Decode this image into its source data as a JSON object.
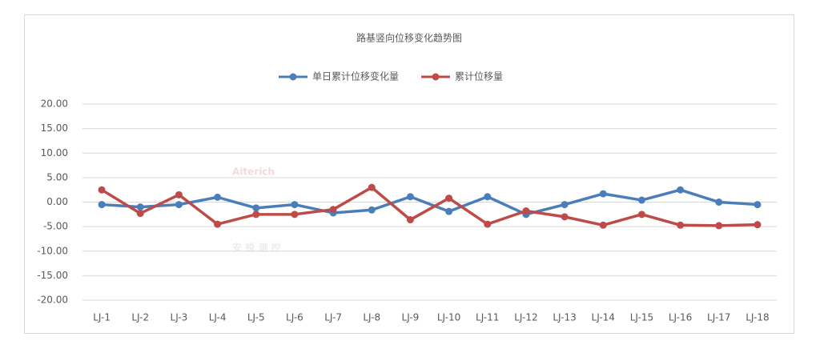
{
  "chart_data": {
    "type": "line",
    "title": "路基竖向位移变化趋势图",
    "watermark": {
      "brand": "Aiterich",
      "name": "安 锐 测 控"
    },
    "categories": [
      "LJ-1",
      "LJ-2",
      "LJ-3",
      "LJ-4",
      "LJ-5",
      "LJ-6",
      "LJ-7",
      "LJ-8",
      "LJ-9",
      "LJ-10",
      "LJ-11",
      "LJ-12",
      "LJ-13",
      "LJ-14",
      "LJ-15",
      "LJ-16",
      "LJ-17",
      "LJ-18"
    ],
    "series": [
      {
        "name": "单日累计位移变化量",
        "color": "#4a7ebb",
        "values": [
          -0.5,
          -1.0,
          -0.5,
          1.0,
          -1.2,
          -0.5,
          -2.2,
          -1.6,
          1.1,
          -1.9,
          1.1,
          -2.5,
          -0.5,
          1.7,
          0.4,
          2.5,
          0.0,
          -0.5
        ]
      },
      {
        "name": "累计位移量",
        "color": "#be4b48",
        "values": [
          2.5,
          -2.3,
          1.5,
          -4.5,
          -2.5,
          -2.5,
          -1.5,
          3.0,
          -3.6,
          0.8,
          -4.5,
          -1.8,
          -3.0,
          -4.7,
          -2.5,
          -4.7,
          -4.8,
          -4.6
        ]
      }
    ],
    "ylim": [
      -20,
      20
    ],
    "yticks": [
      {
        "value": -20,
        "label": "-20.00"
      },
      {
        "value": -15,
        "label": "-15.00"
      },
      {
        "value": -10,
        "label": "-10.00"
      },
      {
        "value": -5,
        "label": "-5.00"
      },
      {
        "value": 0,
        "label": "0.00"
      },
      {
        "value": 5,
        "label": "5.00"
      },
      {
        "value": 10,
        "label": "10.00"
      },
      {
        "value": 15,
        "label": "15.00"
      },
      {
        "value": 20,
        "label": "20.00"
      }
    ],
    "grid": true,
    "legend": "top"
  }
}
